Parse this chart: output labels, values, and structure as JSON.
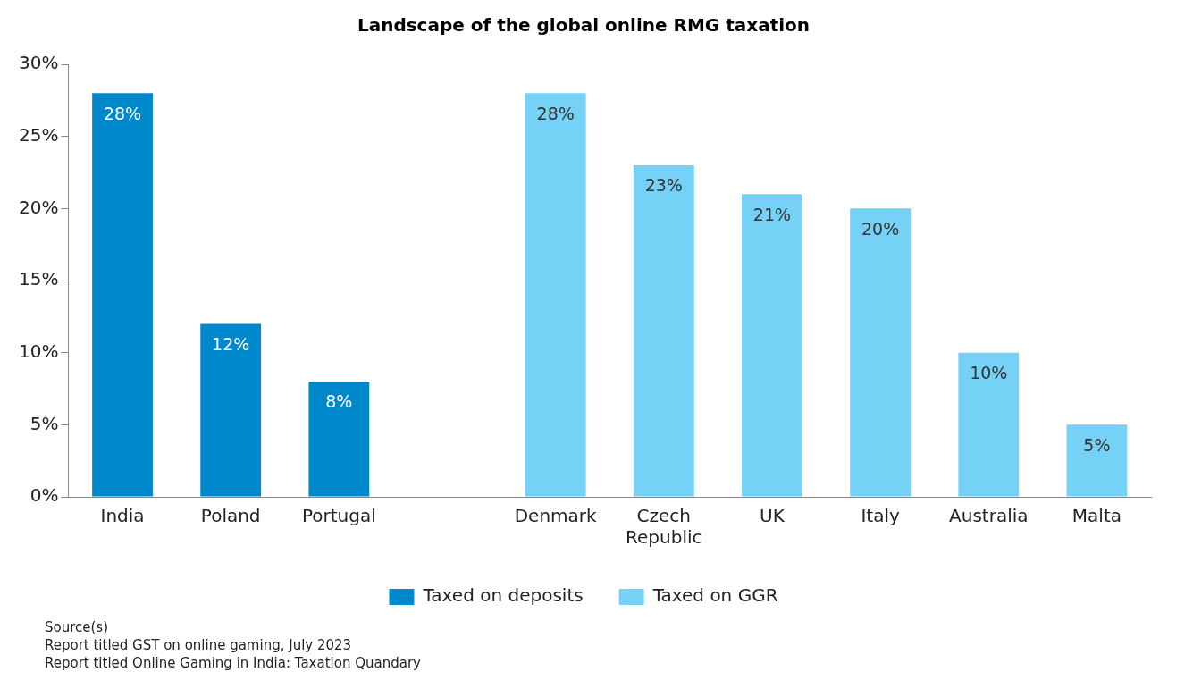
{
  "chart_data": {
    "type": "bar",
    "title": "Landscape of the global online RMG taxation",
    "categories": [
      "India",
      "Poland",
      "Portugal",
      null,
      "Denmark",
      "Czech Republic",
      "UK",
      "Italy",
      "Australia",
      "Malta"
    ],
    "series": [
      {
        "name": "Taxed on deposits",
        "color": "#0088cc",
        "values": [
          28,
          12,
          8,
          null,
          null,
          null,
          null,
          null,
          null,
          null
        ],
        "value_labels": [
          "28%",
          "12%",
          "8%",
          null,
          null,
          null,
          null,
          null,
          null,
          null
        ]
      },
      {
        "name": "Taxed on GGR",
        "color": "#75d1f5",
        "values": [
          null,
          null,
          null,
          null,
          28,
          23,
          21,
          20,
          10,
          5
        ],
        "value_labels": [
          null,
          null,
          null,
          null,
          "28%",
          "23%",
          "21%",
          "20%",
          "10%",
          "5%"
        ]
      }
    ],
    "ylim": [
      0,
      30
    ],
    "yticks": [
      {
        "value": 0,
        "label": "0%"
      },
      {
        "value": 5,
        "label": "5%"
      },
      {
        "value": 10,
        "label": "10%"
      },
      {
        "value": 15,
        "label": "15%"
      },
      {
        "value": 20,
        "label": "20%"
      },
      {
        "value": 25,
        "label": "25%"
      },
      {
        "value": 30,
        "label": "30%"
      }
    ],
    "grid": false,
    "legend": "bottom",
    "annotations": [
      "Source(s)",
      "Report titled GST on online gaming, July 2023",
      "Report titled Online Gaming in India: Taxation Quandary"
    ]
  }
}
